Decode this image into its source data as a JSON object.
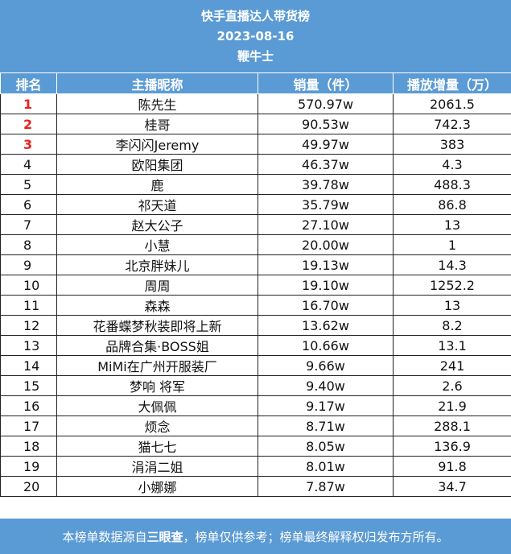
{
  "header": {
    "title": "快手直播达人带货榜",
    "date": "2023-08-16",
    "brand": "鞭牛士"
  },
  "columns": [
    "排名",
    "主播昵称",
    "销量（件）",
    "播放增量（万）"
  ],
  "rows": [
    {
      "rank": "1",
      "name": "陈先生",
      "sales": "570.97w",
      "plays": "2061.5"
    },
    {
      "rank": "2",
      "name": "桂哥",
      "sales": "90.53w",
      "plays": "742.3"
    },
    {
      "rank": "3",
      "name": "李闪闪Jeremy",
      "sales": "49.97w",
      "plays": "383"
    },
    {
      "rank": "4",
      "name": "欧阳集团",
      "sales": "46.37w",
      "plays": "4.3"
    },
    {
      "rank": "5",
      "name": "鹿",
      "sales": "39.78w",
      "plays": "488.3"
    },
    {
      "rank": "6",
      "name": "祁天道",
      "sales": "35.79w",
      "plays": "86.8"
    },
    {
      "rank": "7",
      "name": "赵大公子",
      "sales": "27.10w",
      "plays": "13"
    },
    {
      "rank": "8",
      "name": "小慧",
      "sales": "20.00w",
      "plays": "1"
    },
    {
      "rank": "9",
      "name": "北京胖妹儿",
      "sales": "19.13w",
      "plays": "14.3"
    },
    {
      "rank": "10",
      "name": "周周",
      "sales": "19.10w",
      "plays": "1252.2"
    },
    {
      "rank": "11",
      "name": "森森",
      "sales": "16.70w",
      "plays": "13"
    },
    {
      "rank": "12",
      "name": "花番蝶梦秋装即将上新",
      "sales": "13.62w",
      "plays": "8.2"
    },
    {
      "rank": "13",
      "name": "品牌合集·BOSS姐",
      "sales": "10.66w",
      "plays": "13.1"
    },
    {
      "rank": "14",
      "name": "MiMi在广州开服装厂",
      "sales": "9.66w",
      "plays": "241"
    },
    {
      "rank": "15",
      "name": "梦响 将军",
      "sales": "9.40w",
      "plays": "2.6"
    },
    {
      "rank": "16",
      "name": "大佩佩",
      "sales": "9.17w",
      "plays": "21.9"
    },
    {
      "rank": "17",
      "name": "烦念",
      "sales": "8.71w",
      "plays": "288.1"
    },
    {
      "rank": "18",
      "name": "猫七七",
      "sales": "8.05w",
      "plays": "136.9"
    },
    {
      "rank": "19",
      "name": "涓涓二姐",
      "sales": "8.01w",
      "plays": "91.8"
    },
    {
      "rank": "20",
      "name": "小娜娜",
      "sales": "7.87w",
      "plays": "34.7"
    }
  ],
  "footer": {
    "prefix": "本榜单数据源自",
    "source": "三眼查",
    "suffix": "，榜单仅供参考；榜单最终解释权归发布方所有。"
  },
  "colors": {
    "header_bg": "#5b9bd5",
    "top_rank": "#e8231c"
  }
}
